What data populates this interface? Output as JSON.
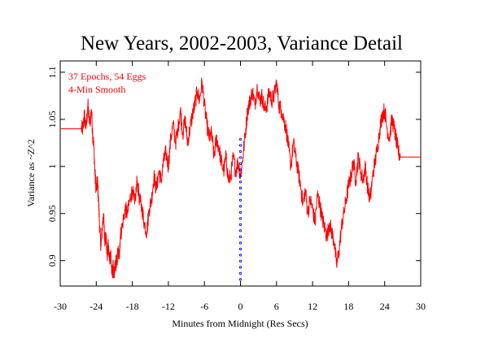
{
  "colors": {
    "series": "#ff0000",
    "marker": "#0000ff",
    "axis": "#000000",
    "background": "#ffffff"
  },
  "chart_data": {
    "type": "line",
    "title": "New Years, 2002-2003, Variance Detail",
    "xlabel": "Minutes from Midnight (Res Secs)",
    "ylabel": "Variance as ~Z^2",
    "xlim": [
      -30,
      30
    ],
    "ylim": [
      0.873,
      1.112
    ],
    "x_ticks": [
      -30,
      -24,
      -18,
      -12,
      -6,
      0,
      6,
      12,
      18,
      24,
      30
    ],
    "y_ticks": [
      0.9,
      0.95,
      1,
      1.05,
      1.1
    ],
    "grid": false,
    "annotations": [
      "37 Epochs, 54 Eggs",
      "4-Min Smooth"
    ],
    "series": [
      {
        "color": "#ff0000",
        "x": [
          -30,
          -26.5,
          -26.2,
          -26,
          -25.7,
          -25.4,
          -25.1,
          -24.8,
          -24.6,
          -24.4,
          -24.2,
          -24,
          -23.8,
          -23.6,
          -23.4,
          -23.2,
          -23,
          -22.8,
          -22.6,
          -22.4,
          -22.2,
          -22,
          -21.8,
          -21.6,
          -21.4,
          -21.2,
          -21,
          -20.8,
          -20.6,
          -20.4,
          -20.2,
          -20,
          -19.6,
          -19.2,
          -18.8,
          -18.4,
          -18,
          -17.6,
          -17.2,
          -16.8,
          -16.4,
          -16,
          -15.6,
          -15.2,
          -14.8,
          -14.4,
          -14,
          -13.6,
          -13.2,
          -12.8,
          -12.4,
          -12,
          -11.6,
          -11.2,
          -10.8,
          -10.4,
          -10,
          -9.6,
          -9.2,
          -8.8,
          -8.4,
          -8,
          -7.6,
          -7.2,
          -6.8,
          -6.4,
          -6,
          -5.6,
          -5.2,
          -4.8,
          -4.4,
          -4,
          -3.6,
          -3.2,
          -2.8,
          -2.4,
          -2,
          -1.6,
          -1.2,
          -0.8,
          -0.4,
          0,
          0.4,
          0.8,
          1.2,
          1.6,
          2,
          2.4,
          2.8,
          3.2,
          3.6,
          4,
          4.4,
          4.8,
          5.2,
          5.6,
          6,
          6.4,
          6.8,
          7.2,
          7.6,
          8,
          8.4,
          8.8,
          9.2,
          9.6,
          10,
          10.4,
          10.8,
          11.2,
          11.6,
          12,
          12.4,
          12.8,
          13.2,
          13.6,
          14,
          14.4,
          14.8,
          15.2,
          15.6,
          16,
          16.4,
          16.8,
          17.2,
          17.6,
          18,
          18.4,
          18.8,
          19.2,
          19.6,
          20,
          20.4,
          20.8,
          21.2,
          21.6,
          22,
          22.4,
          22.8,
          23.2,
          23.6,
          24,
          24.4,
          24.8,
          25.2,
          25.6,
          26,
          26.3,
          26.6,
          30
        ],
        "y": [
          1.04,
          1.04,
          1.04,
          1.055,
          1.04,
          1.065,
          1.045,
          1.06,
          1.035,
          1.02,
          0.99,
          0.975,
          0.985,
          0.96,
          0.93,
          0.915,
          0.935,
          0.95,
          0.92,
          0.93,
          0.905,
          0.915,
          0.9,
          0.91,
          0.885,
          0.893,
          0.882,
          0.9,
          0.895,
          0.91,
          0.905,
          0.925,
          0.94,
          0.955,
          0.95,
          0.965,
          0.975,
          0.96,
          0.985,
          0.965,
          0.955,
          0.94,
          0.93,
          0.955,
          0.965,
          0.99,
          0.975,
          0.995,
          0.985,
          1.005,
          1.015,
          1.0,
          1.03,
          1.045,
          1.025,
          1.04,
          1.06,
          1.035,
          1.05,
          1.025,
          1.04,
          1.055,
          1.065,
          1.08,
          1.07,
          1.09,
          1.065,
          1.045,
          1.03,
          1.035,
          1.01,
          1.03,
          1.02,
          1.005,
          0.995,
          1.01,
          0.985,
          0.99,
          1.01,
          0.995,
          1.005,
          0.99,
          1.01,
          1.035,
          1.06,
          1.07,
          1.08,
          1.065,
          1.085,
          1.07,
          1.075,
          1.06,
          1.065,
          1.08,
          1.07,
          1.075,
          1.09,
          1.065,
          1.06,
          1.05,
          1.04,
          1.02,
          1.0,
          1.025,
          1.01,
          0.995,
          0.98,
          0.96,
          0.975,
          0.95,
          0.965,
          0.955,
          0.94,
          0.97,
          0.96,
          0.945,
          0.935,
          0.925,
          0.94,
          0.93,
          0.92,
          0.895,
          0.91,
          0.935,
          0.95,
          0.965,
          0.98,
          0.99,
          1.005,
          0.985,
          1.01,
          0.995,
          0.985,
          1.0,
          0.975,
          0.965,
          0.99,
          1.005,
          1.02,
          1.04,
          1.055,
          1.06,
          1.04,
          1.03,
          1.05,
          1.04,
          1.025,
          1.015,
          1.01,
          1.01
        ]
      },
      {
        "color": "#0000ff",
        "style": "dotted",
        "x": [
          0,
          0
        ],
        "y": [
          0.88,
          1.03
        ]
      }
    ]
  }
}
